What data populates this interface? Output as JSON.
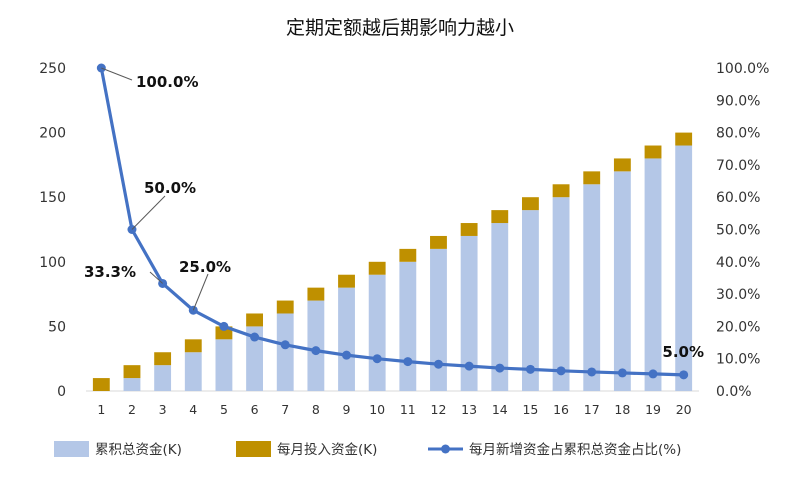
{
  "chart_data": {
    "type": "bar",
    "title": "定期定额越后期影响力越小",
    "categories": [
      "1",
      "2",
      "3",
      "4",
      "5",
      "6",
      "7",
      "8",
      "9",
      "10",
      "11",
      "12",
      "13",
      "14",
      "15",
      "16",
      "17",
      "18",
      "19",
      "20"
    ],
    "series": [
      {
        "name": "累积总资金(K)",
        "type": "bar",
        "axis": "left",
        "color": "#b4c7e7",
        "values": [
          10,
          20,
          30,
          40,
          50,
          60,
          70,
          80,
          90,
          100,
          110,
          120,
          130,
          140,
          150,
          160,
          170,
          180,
          190,
          200
        ]
      },
      {
        "name": "每月投入资金(K)",
        "type": "bar",
        "axis": "left",
        "color": "#bf9000",
        "values": [
          10,
          10,
          10,
          10,
          10,
          10,
          10,
          10,
          10,
          10,
          10,
          10,
          10,
          10,
          10,
          10,
          10,
          10,
          10,
          10
        ]
      },
      {
        "name": "每月新增资金占累积总资金占比(%)",
        "type": "line",
        "axis": "right",
        "color": "#4472c4",
        "values": [
          100.0,
          50.0,
          33.3,
          25.0,
          20.0,
          16.7,
          14.3,
          12.5,
          11.1,
          10.0,
          9.1,
          8.3,
          7.7,
          7.1,
          6.7,
          6.25,
          5.9,
          5.6,
          5.3,
          5.0
        ]
      }
    ],
    "ylim_left": [
      0,
      250
    ],
    "yticks_left": [
      "0",
      "50",
      "100",
      "150",
      "200",
      "250"
    ],
    "ylim_right": [
      0,
      100
    ],
    "yticks_right": [
      "0.0%",
      "10.0%",
      "20.0%",
      "30.0%",
      "40.0%",
      "50.0%",
      "60.0%",
      "70.0%",
      "80.0%",
      "90.0%",
      "100.0%"
    ],
    "data_labels": [
      {
        "index": 0,
        "text": "100.0%"
      },
      {
        "index": 1,
        "text": "50.0%"
      },
      {
        "index": 2,
        "text": "33.3%"
      },
      {
        "index": 3,
        "text": "25.0%"
      },
      {
        "index": 19,
        "text": "5.0%"
      }
    ],
    "grid": false,
    "legend_position": "bottom"
  }
}
